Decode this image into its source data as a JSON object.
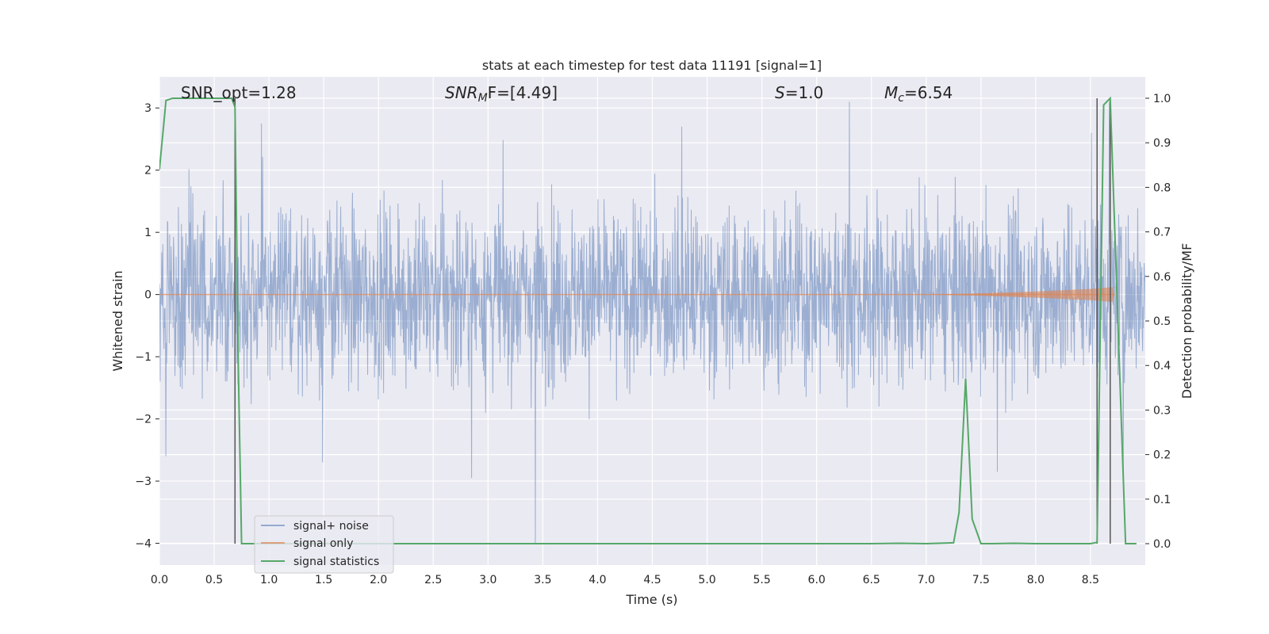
{
  "chart_data": {
    "type": "line",
    "title": "stats at each timestep for test data 11191 [signal=1]",
    "xlabel": "Time (s)",
    "ylabel": "Whitened strain",
    "y2label": "Detection probability/MF",
    "xlim": [
      0.0,
      9.0
    ],
    "ylim": [
      -4.35,
      3.5
    ],
    "y2lim": [
      -0.048,
      1.048
    ],
    "xticks": [
      "0.0",
      "0.5",
      "1.0",
      "1.5",
      "2.0",
      "2.5",
      "3.0",
      "3.5",
      "4.0",
      "4.5",
      "5.0",
      "5.5",
      "6.0",
      "6.5",
      "7.0",
      "7.5",
      "8.0",
      "8.5"
    ],
    "yticks": [
      "3",
      "2",
      "1",
      "0",
      "−1",
      "−2",
      "−3",
      "−4"
    ],
    "y2ticks": [
      "1.0",
      "0.9",
      "0.8",
      "0.7",
      "0.6",
      "0.5",
      "0.4",
      "0.3",
      "0.2",
      "0.1",
      "0.0"
    ],
    "grid": true,
    "legend_position": "lower-left",
    "colors": {
      "noise": "#4c72b0",
      "signal": "#dd8452",
      "statistics": "#55a868",
      "vlines": "#555555",
      "background": "#eaeaf2"
    },
    "annotations": {
      "snr_opt": "SNR_opt=1.28",
      "snr_mf_base": "SNR",
      "snr_mf_sub": "M",
      "snr_mf_rest": "F=[4.49]",
      "s_var": "S",
      "s_rest": "=1.0",
      "mc_base": "M",
      "mc_sub": "c",
      "mc_rest": "=6.54"
    },
    "series": [
      {
        "name": "signal+ noise",
        "description_range": "approx. ±1.7 typical, peaks to +3.1 and −4.0",
        "y_min": -4.0,
        "y_max": 3.15
      },
      {
        "name": "signal only",
        "x": [
          0.0,
          7.0,
          7.5,
          8.0,
          8.5,
          8.7,
          8.72
        ],
        "y_upper": [
          0.0,
          0.0,
          0.02,
          0.05,
          0.09,
          0.12,
          0.0
        ],
        "y_lower": [
          0.0,
          0.0,
          -0.02,
          -0.05,
          -0.09,
          -0.12,
          0.0
        ]
      },
      {
        "name": "signal statistics",
        "x": [
          0.0,
          0.06,
          0.12,
          0.2,
          0.3,
          0.4,
          0.5,
          0.6,
          0.66,
          0.69,
          0.72,
          0.75,
          0.8,
          1.0,
          2.0,
          3.0,
          4.0,
          5.0,
          6.0,
          6.5,
          6.75,
          7.0,
          7.25,
          7.3,
          7.36,
          7.42,
          7.5,
          7.6,
          7.8,
          8.0,
          8.5,
          8.56,
          8.62,
          8.68,
          8.75,
          8.82,
          8.92
        ],
        "y": [
          0.84,
          0.995,
          1.0,
          1.0,
          1.0,
          1.0,
          1.0,
          1.0,
          1.0,
          0.98,
          0.4,
          0.0,
          0.0,
          0.0,
          0.0,
          0.0,
          0.0,
          0.0,
          0.0,
          0.0,
          0.001,
          0.0,
          0.002,
          0.07,
          0.37,
          0.055,
          0.0,
          0.0,
          0.001,
          0.0,
          0.0,
          0.003,
          0.985,
          1.0,
          0.5,
          0.0,
          0.0
        ]
      }
    ],
    "vertical_lines": [
      {
        "x": 0.69,
        "y_top": 1.0,
        "y_bottom": 0.0
      },
      {
        "x": 8.56,
        "y_top": 1.0,
        "y_bottom": 0.0
      },
      {
        "x": 8.68,
        "y_top": 1.0,
        "y_bottom": 0.0
      }
    ]
  }
}
